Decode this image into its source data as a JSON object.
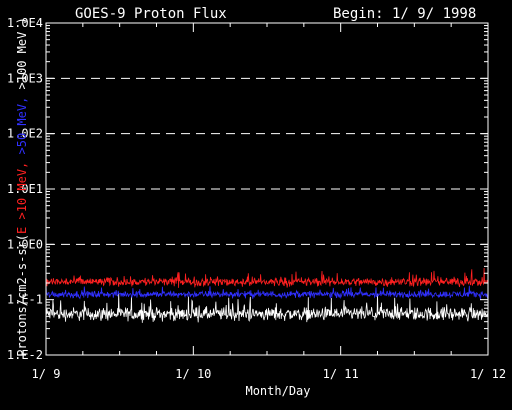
{
  "chart_data": {
    "type": "line",
    "title": "GOES-9 Proton Flux",
    "begin_label": "Begin: 1/ 9/ 1998",
    "xlabel": "Month/Day",
    "ylabel_parts": [
      {
        "text": "Protons/cm2-s-sr(",
        "color": "#ffffff"
      },
      {
        "text": "E >10 MeV, ",
        "color": "#ff2020"
      },
      {
        "text": ">50 MeV, ",
        "color": "#3030ff"
      },
      {
        "text": ">100 MeV )",
        "color": "#ffffff"
      }
    ],
    "x_ticks": [
      "1/ 9",
      "1/ 10",
      "1/ 11",
      "1/ 12"
    ],
    "x_range_days": [
      0,
      3
    ],
    "y_scale": "log",
    "ylim": [
      0.01,
      10000
    ],
    "y_ticks": [
      "1.E-2",
      "1.E-1",
      "1.0E0",
      "1.0E1",
      "1.0E2",
      "1.0E3",
      "1.0E4"
    ],
    "grid": "dashed horizontal",
    "series": [
      {
        "name": "E >10 MeV",
        "color": "#ff2020",
        "baseline": 0.21,
        "spread_decades": 0.12
      },
      {
        "name": ">50 MeV",
        "color": "#3030ff",
        "baseline": 0.125,
        "spread_decades": 0.09
      },
      {
        "name": ">100 MeV",
        "color": "#ffffff",
        "baseline": 0.055,
        "spread_decades": 0.18
      }
    ]
  }
}
